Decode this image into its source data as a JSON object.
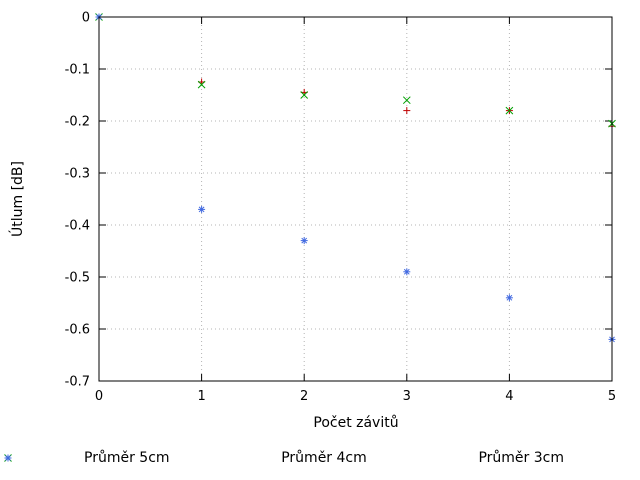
{
  "figure": {
    "xlabel": "Počet závitů",
    "ylabel": "Útlum [dB]"
  },
  "chart_data": {
    "type": "scatter",
    "title": "",
    "xlabel": "Počet závitů",
    "ylabel": "Útlum [dB]",
    "xlim": [
      0,
      5
    ],
    "ylim": [
      -0.7,
      0
    ],
    "xticks": [
      0,
      1,
      2,
      3,
      4,
      5
    ],
    "xtick_labels": [
      "0",
      "1",
      "2",
      "3",
      "4",
      "5"
    ],
    "yticks": [
      0,
      -0.1,
      -0.2,
      -0.3,
      -0.4,
      -0.5,
      -0.6,
      -0.7
    ],
    "ytick_labels": [
      "0",
      "-0.1",
      "-0.2",
      "-0.3",
      "-0.4",
      "-0.5",
      "-0.6",
      "-0.7"
    ],
    "grid": true,
    "grid_style": "dotted",
    "legend_position": "bottom",
    "series": [
      {
        "name": "Průměr 5cm",
        "marker": "plus",
        "color": "#c00000",
        "points": [
          [
            0,
            0
          ],
          [
            1,
            -0.125
          ],
          [
            2,
            -0.145
          ],
          [
            3,
            -0.18
          ],
          [
            4,
            -0.18
          ],
          [
            5,
            -0.21
          ]
        ]
      },
      {
        "name": "Průměr 4cm",
        "marker": "cross",
        "color": "#00a000",
        "points": [
          [
            0,
            0
          ],
          [
            1,
            -0.13
          ],
          [
            2,
            -0.15
          ],
          [
            3,
            -0.16
          ],
          [
            4,
            -0.18
          ],
          [
            5,
            -0.205
          ]
        ]
      },
      {
        "name": "Průměr 3cm",
        "marker": "asterisk",
        "color": "#4169e1",
        "points": [
          [
            0,
            0
          ],
          [
            1,
            -0.37
          ],
          [
            2,
            -0.43
          ],
          [
            3,
            -0.49
          ],
          [
            4,
            -0.54
          ],
          [
            5,
            -0.62
          ]
        ]
      }
    ]
  },
  "colors": {
    "background": "#ffffff",
    "grid": "#b4b4b4",
    "axis": "#000000"
  }
}
